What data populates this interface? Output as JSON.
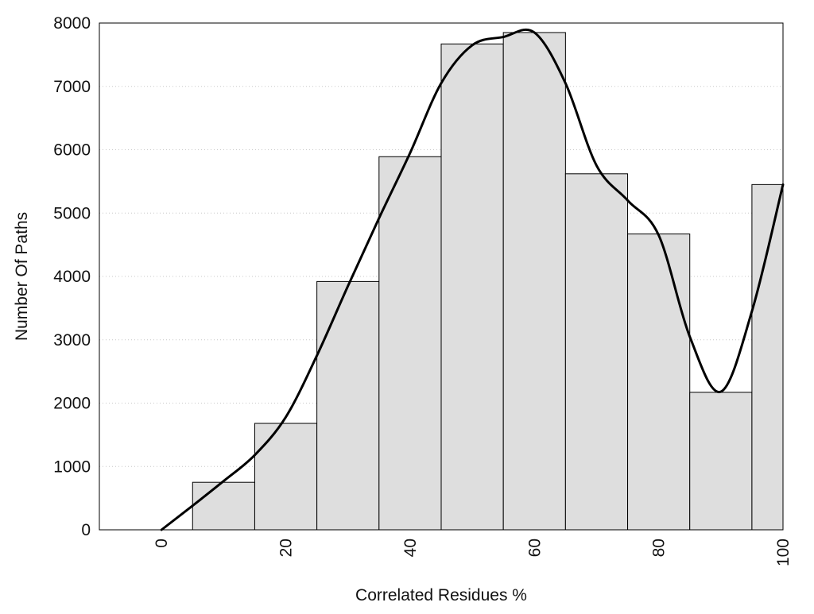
{
  "chart_data": {
    "type": "bar",
    "xlabel": "Correlated Residues %",
    "ylabel": "Number Of Paths",
    "xlim": [
      -10,
      100
    ],
    "ylim": [
      0,
      8000
    ],
    "x_ticks": [
      0,
      20,
      40,
      60,
      80,
      100
    ],
    "y_ticks": [
      0,
      1000,
      2000,
      3000,
      4000,
      5000,
      6000,
      7000,
      8000
    ],
    "grid": "horizontal-dotted",
    "bar_color": "#dedede",
    "bar_edge_color": "#000000",
    "line_color": "#000000",
    "series": [
      {
        "type": "bar",
        "bins": [
          {
            "x0": -5,
            "x1": 5,
            "value": 0
          },
          {
            "x0": 5,
            "x1": 15,
            "value": 750
          },
          {
            "x0": 15,
            "x1": 25,
            "value": 1680
          },
          {
            "x0": 25,
            "x1": 35,
            "value": 3920
          },
          {
            "x0": 35,
            "x1": 45,
            "value": 5890
          },
          {
            "x0": 45,
            "x1": 55,
            "value": 7670
          },
          {
            "x0": 55,
            "x1": 65,
            "value": 7850
          },
          {
            "x0": 65,
            "x1": 75,
            "value": 5620
          },
          {
            "x0": 75,
            "x1": 85,
            "value": 4670
          },
          {
            "x0": 85,
            "x1": 95,
            "value": 2170
          },
          {
            "x0": 95,
            "x1": 100,
            "value": 5450
          }
        ]
      },
      {
        "type": "line",
        "points": [
          [
            0,
            0
          ],
          [
            5,
            380
          ],
          [
            10,
            770
          ],
          [
            15,
            1180
          ],
          [
            20,
            1780
          ],
          [
            25,
            2750
          ],
          [
            30,
            3850
          ],
          [
            35,
            4920
          ],
          [
            40,
            5950
          ],
          [
            45,
            7050
          ],
          [
            50,
            7650
          ],
          [
            55,
            7780
          ],
          [
            60,
            7850
          ],
          [
            65,
            7050
          ],
          [
            70,
            5750
          ],
          [
            75,
            5200
          ],
          [
            80,
            4650
          ],
          [
            85,
            3050
          ],
          [
            90,
            2180
          ],
          [
            95,
            3450
          ],
          [
            100,
            5450
          ]
        ]
      }
    ]
  }
}
